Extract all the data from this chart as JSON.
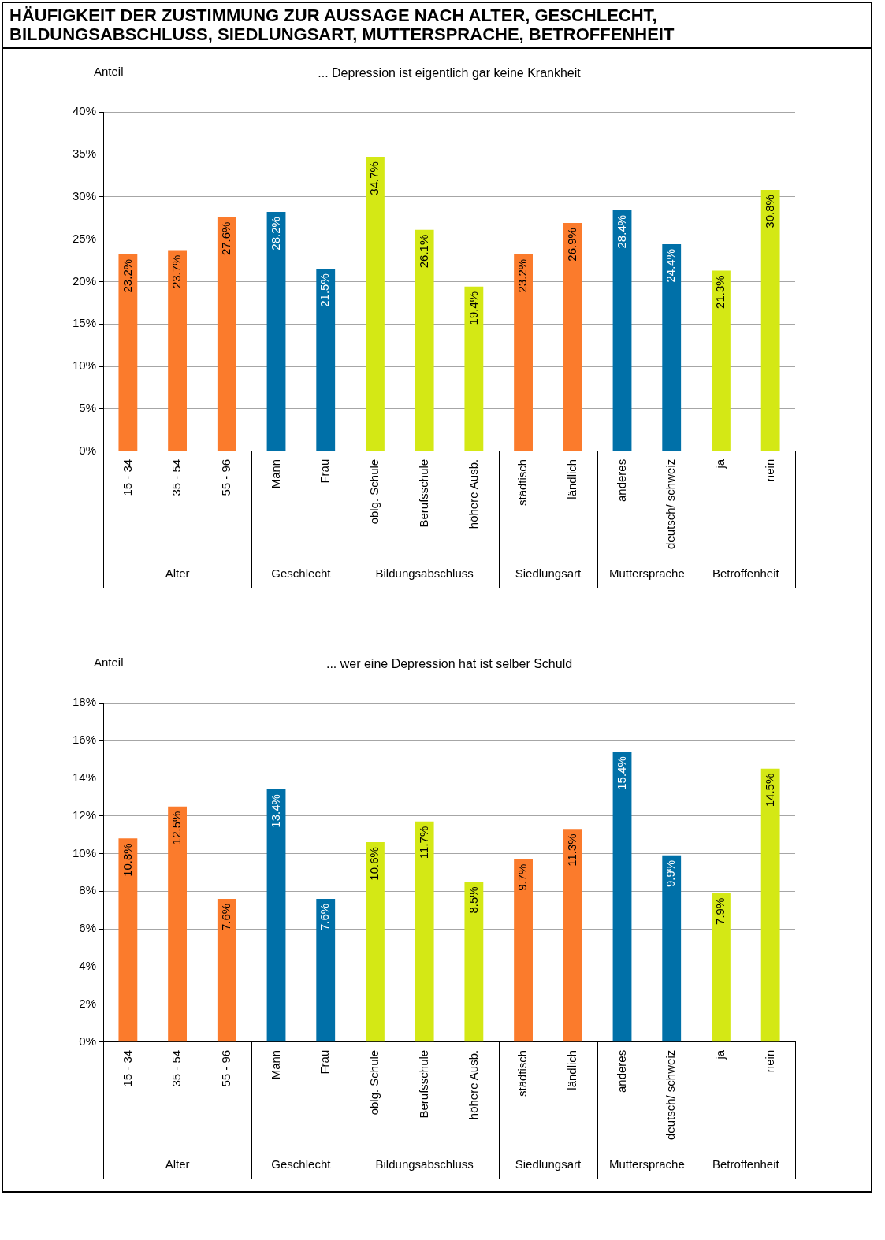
{
  "chart_data": [
    {
      "type": "bar",
      "title": "HÄUFIGKEIT DER ZUSTIMMUNG ZUR AUSSAGE NACH ALTER, GESCHLECHT, BILDUNGSABSCHLUSS, SIEDLUNGSART, MUTTERSPRACHE, BETROFFENHEIT",
      "subtitle": "... Depression ist eigentlich gar keine Krankheit",
      "ylabel": "Anteil",
      "categories": [
        "15 - 34",
        "35 - 54",
        "55 - 96",
        "Mann",
        "Frau",
        "oblg. Schule",
        "Berufsschule",
        "höhere Ausb.",
        "städtisch",
        "ländlich",
        "anderes",
        "deutsch/ schweiz",
        "ja",
        "nein"
      ],
      "values": [
        23.2,
        23.7,
        27.6,
        28.2,
        21.5,
        34.7,
        26.1,
        19.4,
        23.2,
        26.9,
        28.4,
        24.4,
        21.3,
        30.8
      ],
      "value_labels": [
        "23.2%",
        "23.7%",
        "27.6%",
        "28.2%",
        "21.5%",
        "34.7%",
        "26.1%",
        "19.4%",
        "23.2%",
        "26.9%",
        "28.4%",
        "24.4%",
        "21.3%",
        "30.8%"
      ],
      "colors": [
        "#fb7b2c",
        "#fb7b2c",
        "#fb7b2c",
        "#0070a8",
        "#0070a8",
        "#d4e815",
        "#d4e815",
        "#d4e815",
        "#fb7b2c",
        "#fb7b2c",
        "#0070a8",
        "#0070a8",
        "#d4e815",
        "#d4e815"
      ],
      "ylim": [
        0,
        40
      ],
      "yticks": [
        {
          "value": 0,
          "label": "0%"
        },
        {
          "value": 5,
          "label": "5%"
        },
        {
          "value": 10,
          "label": "10%"
        },
        {
          "value": 15,
          "label": "15%"
        },
        {
          "value": 20,
          "label": "20%"
        },
        {
          "value": 25,
          "label": "25%"
        },
        {
          "value": 30,
          "label": "30%"
        },
        {
          "value": 35,
          "label": "35%"
        },
        {
          "value": 40,
          "label": "40%"
        }
      ],
      "grid": "y",
      "annotations": [
        "Alter",
        "Geschlecht",
        "Bildungsabschluss",
        "Siedlungsart",
        "Muttersprache",
        "Betroffenheit"
      ]
    },
    {
      "type": "bar",
      "subtitle": "... wer eine Depression hat ist selber Schuld",
      "ylabel": "Anteil",
      "categories": [
        "15 - 34",
        "35 - 54",
        "55 - 96",
        "Mann",
        "Frau",
        "oblg. Schule",
        "Berufsschule",
        "höhere Ausb.",
        "städtisch",
        "ländlich",
        "anderes",
        "deutsch/ schweiz",
        "ja",
        "nein"
      ],
      "values": [
        10.8,
        12.5,
        7.6,
        13.4,
        7.6,
        10.6,
        11.7,
        8.5,
        9.7,
        11.3,
        15.4,
        9.9,
        7.9,
        14.5
      ],
      "value_labels": [
        "10.8%",
        "12.5%",
        "7.6%",
        "13.4%",
        "7.6%",
        "10.6%",
        "11.7%",
        "8.5%",
        "9.7%",
        "11.3%",
        "15.4%",
        "9.9%",
        "7.9%",
        "14.5%"
      ],
      "colors": [
        "#fb7b2c",
        "#fb7b2c",
        "#fb7b2c",
        "#0070a8",
        "#0070a8",
        "#d4e815",
        "#d4e815",
        "#d4e815",
        "#fb7b2c",
        "#fb7b2c",
        "#0070a8",
        "#0070a8",
        "#d4e815",
        "#d4e815"
      ],
      "ylim": [
        0,
        18
      ],
      "yticks": [
        {
          "value": 0,
          "label": "0%"
        },
        {
          "value": 2,
          "label": "2%"
        },
        {
          "value": 4,
          "label": "4%"
        },
        {
          "value": 6,
          "label": "6%"
        },
        {
          "value": 8,
          "label": "8%"
        },
        {
          "value": 10,
          "label": "10%"
        },
        {
          "value": 12,
          "label": "12%"
        },
        {
          "value": 14,
          "label": "14%"
        },
        {
          "value": 16,
          "label": "16%"
        },
        {
          "value": 18,
          "label": "18%"
        }
      ],
      "grid": "y",
      "annotations": [
        "Alter",
        "Geschlecht",
        "Bildungsabschluss",
        "Siedlungsart",
        "Muttersprache",
        "Betroffenheit"
      ]
    }
  ]
}
